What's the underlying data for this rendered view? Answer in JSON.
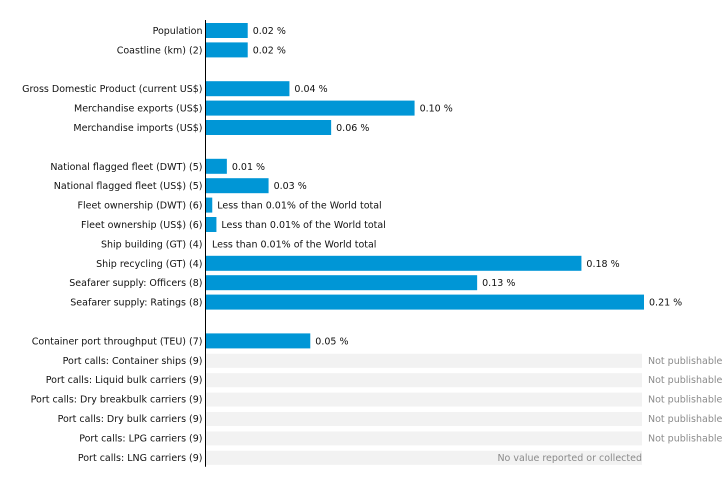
{
  "chart_data": {
    "type": "bar",
    "orientation": "horizontal",
    "unit": "%",
    "bar_color": "#0096d6",
    "na_band_color": "#f2f2f2",
    "xlim": [
      0,
      0.21
    ],
    "groups": [
      {
        "rows": [
          {
            "label": "Population",
            "value": 0.02,
            "value_label": "0.02 %"
          },
          {
            "label": "Coastline (km) (2)",
            "value": 0.02,
            "value_label": "0.02 %"
          }
        ]
      },
      {
        "rows": [
          {
            "label": "Gross Domestic Product (current US$)",
            "value": 0.04,
            "value_label": "0.04 %"
          },
          {
            "label": "Merchandise exports (US$)",
            "value": 0.1,
            "value_label": "0.10 %"
          },
          {
            "label": "Merchandise imports (US$)",
            "value": 0.06,
            "value_label": "0.06 %"
          }
        ]
      },
      {
        "rows": [
          {
            "label": "National flagged fleet (DWT) (5)",
            "value": 0.01,
            "value_label": "0.01 %"
          },
          {
            "label": "National flagged fleet (US$) (5)",
            "value": 0.03,
            "value_label": "0.03 %"
          },
          {
            "label": "Fleet ownership (DWT) (6)",
            "value": 0.003,
            "value_label": "Less than 0.01% of the World total"
          },
          {
            "label": "Fleet ownership (US$) (6)",
            "value": 0.005,
            "value_label": "Less than 0.01% of the World total"
          },
          {
            "label": "Ship building (GT) (4)",
            "value": 0,
            "value_label": "Less than 0.01% of the World total"
          },
          {
            "label": "Ship recycling (GT) (4)",
            "value": 0.18,
            "value_label": "0.18 %"
          },
          {
            "label": "Seafarer supply: Officers (8)",
            "value": 0.13,
            "value_label": "0.13 %"
          },
          {
            "label": "Seafarer supply: Ratings (8)",
            "value": 0.21,
            "value_label": "0.21 %"
          }
        ]
      },
      {
        "rows": [
          {
            "label": "Container port throughput (TEU) (7)",
            "value": 0.05,
            "value_label": "0.05 %"
          },
          {
            "label": "Port calls: Container ships (9)",
            "value": null,
            "note": "Not publishable"
          },
          {
            "label": "Port calls: Liquid bulk carriers (9)",
            "value": null,
            "note": "Not publishable"
          },
          {
            "label": "Port calls: Dry breakbulk carriers (9)",
            "value": null,
            "note": "Not publishable"
          },
          {
            "label": "Port calls: Dry bulk carriers (9)",
            "value": null,
            "note": "Not publishable"
          },
          {
            "label": "Port calls: LPG carriers (9)",
            "value": null,
            "note": "Not publishable"
          },
          {
            "label": "Port calls: LNG carriers (9)",
            "value": null,
            "note": "No value reported or collected"
          }
        ]
      }
    ]
  }
}
